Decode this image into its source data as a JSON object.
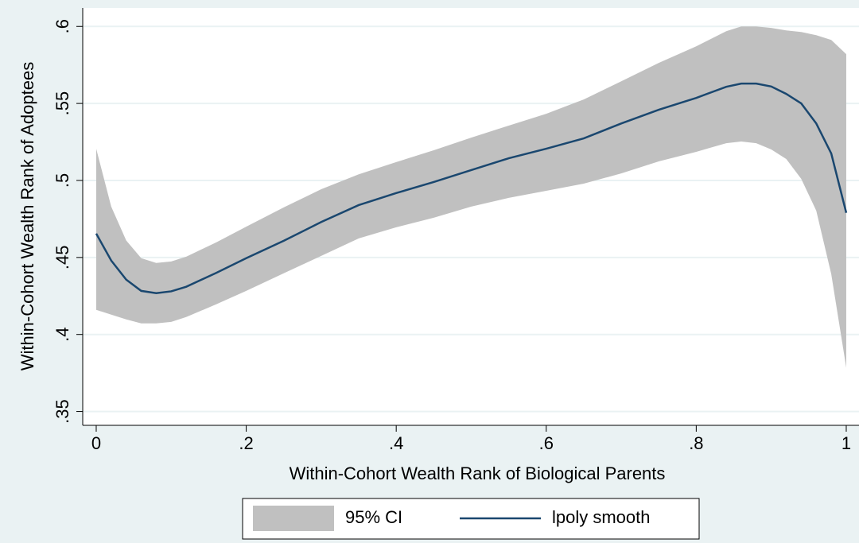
{
  "chart_data": {
    "type": "line",
    "x_label": "Within-Cohort Wealth Rank of Biological Parents",
    "y_label": "Within-Cohort Wealth Rank of Adoptees",
    "x": [
      0,
      0.02,
      0.04,
      0.06,
      0.08,
      0.1,
      0.12,
      0.16,
      0.2,
      0.25,
      0.3,
      0.35,
      0.4,
      0.45,
      0.5,
      0.55,
      0.6,
      0.65,
      0.7,
      0.75,
      0.8,
      0.84,
      0.86,
      0.88,
      0.9,
      0.92,
      0.94,
      0.96,
      0.98,
      1
    ],
    "series": [
      {
        "name": "95% CI",
        "type": "area",
        "color": "#c0c0c0",
        "upper": [
          0.5206,
          0.483,
          0.461,
          0.4495,
          0.4464,
          0.4474,
          0.4505,
          0.4598,
          0.47,
          0.4825,
          0.4943,
          0.504,
          0.5119,
          0.5196,
          0.5278,
          0.5356,
          0.5433,
          0.5526,
          0.5644,
          0.5763,
          0.5871,
          0.5969,
          0.6,
          0.6,
          0.599,
          0.5974,
          0.5964,
          0.5943,
          0.5912,
          0.582
        ],
        "lower": [
          0.416,
          0.4129,
          0.4098,
          0.4072,
          0.4072,
          0.4082,
          0.4113,
          0.4196,
          0.4283,
          0.4397,
          0.451,
          0.4624,
          0.4696,
          0.4758,
          0.483,
          0.4887,
          0.4933,
          0.4979,
          0.5046,
          0.5124,
          0.5186,
          0.5242,
          0.5253,
          0.5242,
          0.5201,
          0.5139,
          0.501,
          0.4804,
          0.4392,
          0.3784
        ]
      },
      {
        "name": "lpoly smooth",
        "type": "line",
        "color": "#1a476f",
        "values": [
          0.4655,
          0.448,
          0.4356,
          0.4283,
          0.4268,
          0.428,
          0.431,
          0.44,
          0.4495,
          0.4608,
          0.473,
          0.484,
          0.4918,
          0.499,
          0.5067,
          0.5144,
          0.5206,
          0.5273,
          0.537,
          0.5459,
          0.5536,
          0.5608,
          0.5629,
          0.5629,
          0.561,
          0.5562,
          0.55,
          0.537,
          0.5175,
          0.479
        ]
      }
    ],
    "xlim": [
      -0.018,
      1.017
    ],
    "ylim": [
      0.341,
      0.612
    ],
    "xticks": [
      0,
      {
        "value": 0.2,
        "label": ".2"
      },
      {
        "value": 0.4,
        "label": ".4"
      },
      {
        "value": 0.6,
        "label": ".6"
      },
      {
        "value": 0.8,
        "label": ".8"
      },
      1
    ],
    "yticks": [
      {
        "value": 0.35,
        "label": ".35"
      },
      {
        "value": 0.4,
        "label": ".4"
      },
      {
        "value": 0.45,
        "label": ".45"
      },
      {
        "value": 0.5,
        "label": ".5"
      },
      {
        "value": 0.55,
        "label": ".55"
      },
      {
        "value": 0.6,
        "label": ".6"
      }
    ],
    "grid": true
  }
}
